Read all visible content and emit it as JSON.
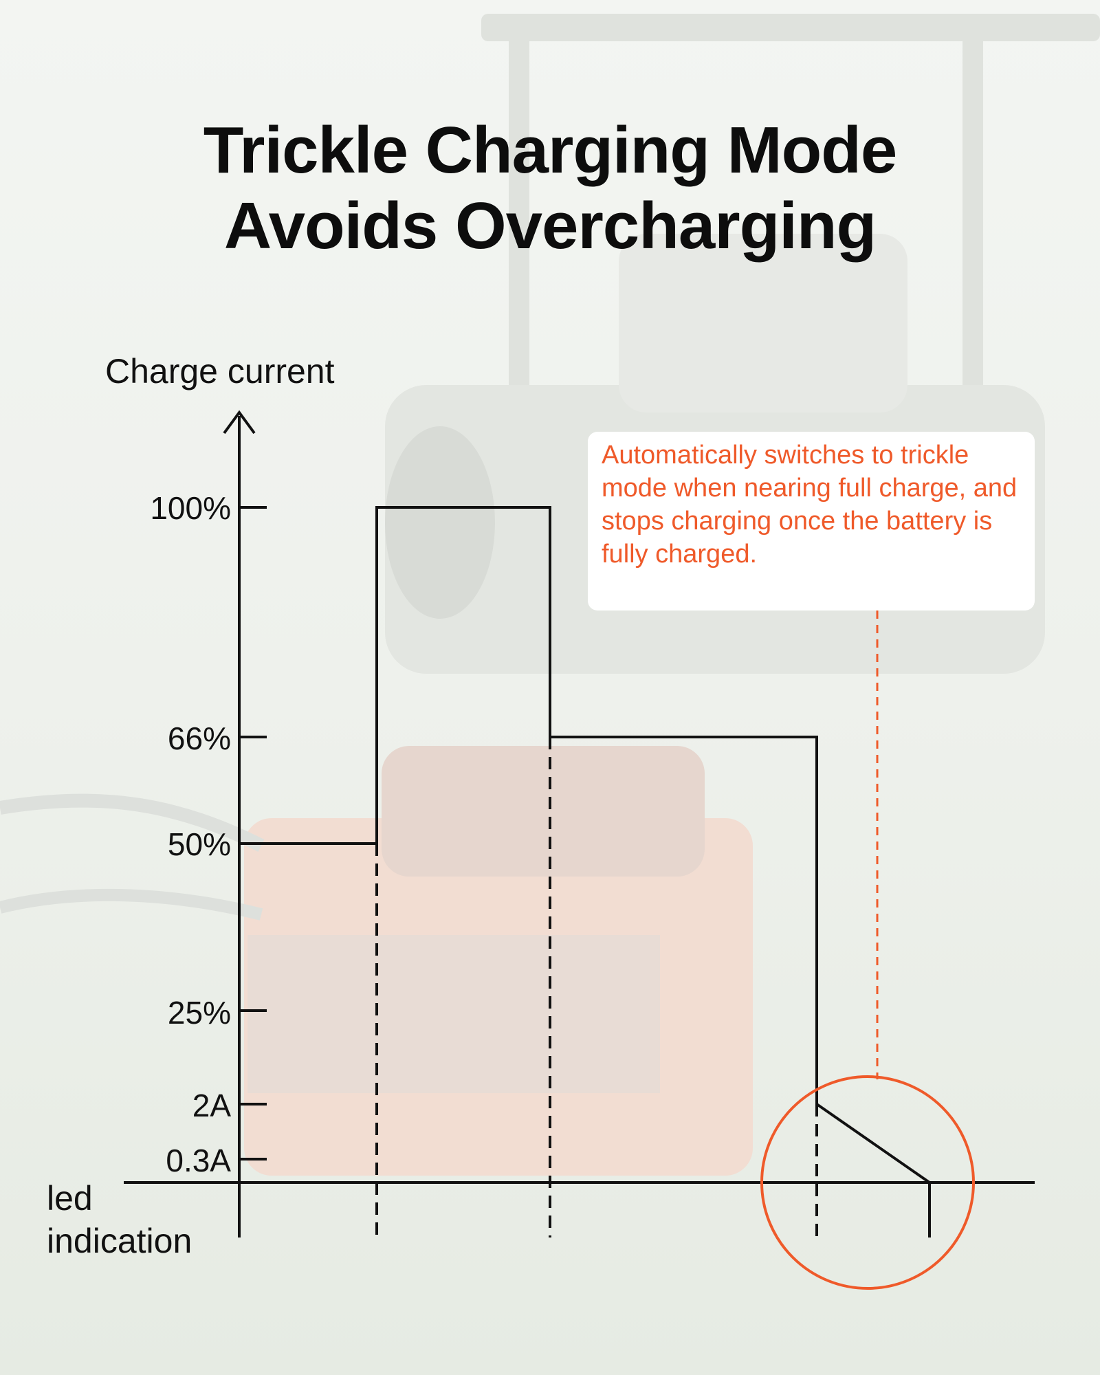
{
  "title": {
    "line1": "Trickle Charging Mode",
    "line2": "Avoids Overcharging"
  },
  "annotation": {
    "text": "Automatically switches to trickle mode when nearing full charge, and stops charging once the battery is fully charged."
  },
  "colors": {
    "accent": "#ef5a2a",
    "line": "#111111"
  },
  "chart_data": {
    "type": "line",
    "title": "",
    "ylabel": "Charge current",
    "xlabel": "led indication",
    "y_ticks": [
      "100%",
      "66%",
      "50%",
      "25%",
      "2A",
      "0.3A"
    ],
    "series": [
      {
        "points": [
          {
            "stage": 0,
            "current": "50%"
          },
          {
            "stage": 1,
            "current": "50%"
          },
          {
            "stage": 1,
            "current": "100%"
          },
          {
            "stage": 2,
            "current": "100%"
          },
          {
            "stage": 2,
            "current": "66%"
          },
          {
            "stage": 3,
            "current": "66%"
          },
          {
            "stage": 3,
            "current": "2A"
          },
          {
            "stage": 4,
            "current": "0"
          }
        ]
      }
    ],
    "stage_dividers": [
      1,
      2,
      3,
      4
    ],
    "highlight": "trickle stage (2A to 0)"
  }
}
